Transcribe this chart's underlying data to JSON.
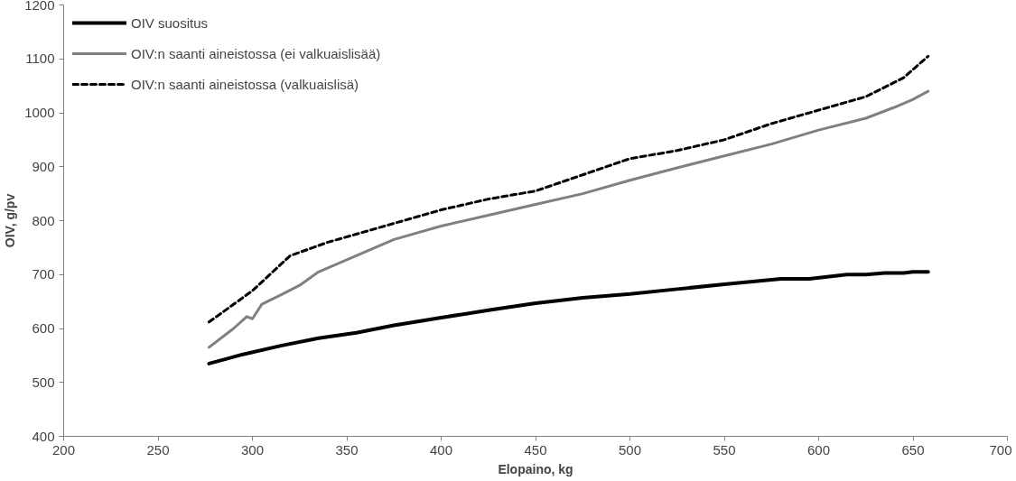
{
  "chart_data": {
    "type": "line",
    "xlabel": "Elopaino, kg",
    "ylabel": "OIV, g/pv",
    "xlim": [
      200,
      700
    ],
    "xticks": [
      200,
      250,
      300,
      350,
      400,
      450,
      500,
      550,
      600,
      650,
      700
    ],
    "ylim": [
      400,
      1200
    ],
    "yticks": [
      400,
      500,
      600,
      700,
      800,
      900,
      1000,
      1100,
      1200
    ],
    "grid": false,
    "legend": "top left",
    "marker": "none",
    "series": [
      {
        "name": "OIV suositus",
        "color": "#000000",
        "line_style": "solid",
        "x": [
          277,
          295,
          315,
          335,
          355,
          375,
          400,
          425,
          450,
          475,
          500,
          525,
          550,
          580,
          595,
          615,
          625,
          635,
          645,
          650,
          658
        ],
        "values": [
          535,
          552,
          568,
          582,
          592,
          606,
          620,
          634,
          647,
          657,
          664,
          673,
          682,
          692,
          692,
          700,
          700,
          703,
          703,
          705,
          705
        ]
      },
      {
        "name": "OIV:n saanti aineistossa (ei valkuaislisää)",
        "color": "#808080",
        "line_style": "solid",
        "x": [
          277,
          290,
          297,
          300,
          305,
          315,
          325,
          335,
          355,
          375,
          400,
          425,
          450,
          475,
          500,
          525,
          550,
          575,
          600,
          625,
          640,
          650,
          658
        ],
        "values": [
          565,
          600,
          622,
          618,
          645,
          662,
          680,
          705,
          735,
          765,
          790,
          810,
          830,
          850,
          875,
          898,
          920,
          942,
          968,
          990,
          1010,
          1025,
          1040
        ]
      },
      {
        "name": "OIV:n saanti aineistossa (valkuaislisä)",
        "color": "#000000",
        "line_style": "dashed",
        "x": [
          277,
          300,
          320,
          340,
          355,
          375,
          400,
          425,
          450,
          475,
          500,
          525,
          550,
          575,
          600,
          625,
          645,
          658
        ],
        "values": [
          612,
          670,
          735,
          760,
          775,
          795,
          820,
          840,
          855,
          885,
          915,
          930,
          950,
          980,
          1005,
          1030,
          1065,
          1105
        ]
      }
    ]
  }
}
